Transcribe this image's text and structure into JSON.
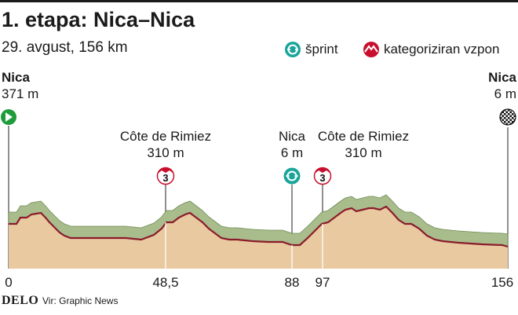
{
  "header": {
    "title": "1. etapa: Nica–Nica",
    "subtitle": "29. avgust, 156 km"
  },
  "legend": {
    "sprint_label": "šprint",
    "climb_label": "kategoriziran vzpon",
    "sprint_color": "#1aa59a",
    "climb_color": "#c8102e"
  },
  "start": {
    "name": "Nica",
    "elevation": "371 m",
    "marker_color": "#1e9c3a"
  },
  "finish": {
    "name": "Nica",
    "elevation": "6 m"
  },
  "points": [
    {
      "name": "Côte de Rimiez",
      "elevation": "310 m",
      "type": "climb",
      "category": "3",
      "km": 48.5
    },
    {
      "name": "Nica",
      "elevation": "6 m",
      "type": "sprint",
      "km": 88
    },
    {
      "name": "Côte de Rimiez",
      "elevation": "310 m",
      "type": "climb",
      "category": "3",
      "km": 97
    }
  ],
  "km_labels": [
    "0",
    "48,5",
    "88",
    "97",
    "156"
  ],
  "footer": {
    "brand": "DELO",
    "source": "Vir: Graphic News"
  }
}
